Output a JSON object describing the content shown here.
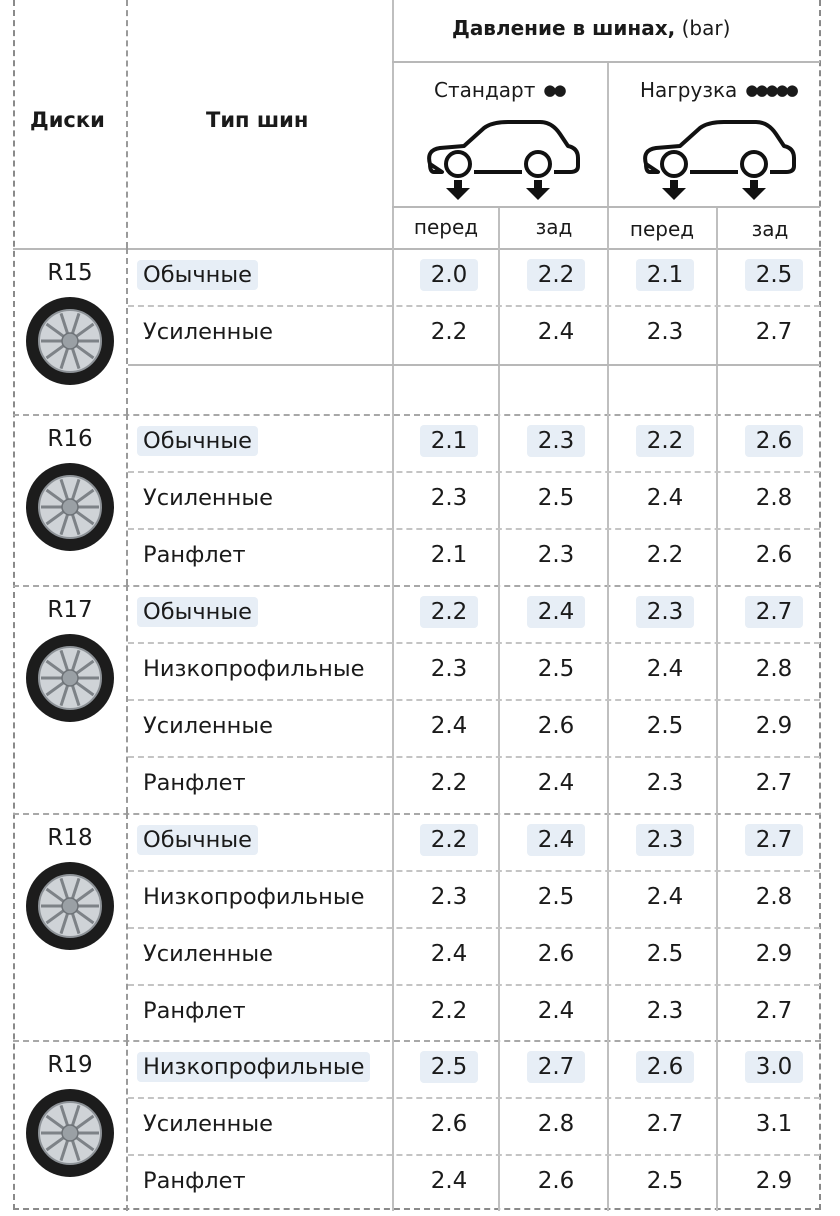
{
  "header": {
    "col_rims": "Диски",
    "col_type": "Тип шин",
    "pressure_title_bold": "Давление в шинах,",
    "pressure_title_unit": "(bar)",
    "mode_standard": "Стандарт",
    "mode_load": "Нагрузка",
    "front": "перед",
    "rear": "зад"
  },
  "groups": [
    {
      "rim": "R15",
      "rows": [
        {
          "type": "Обычные",
          "values": [
            "2.0",
            "2.2",
            "2.1",
            "2.5"
          ],
          "highlighted": true
        },
        {
          "type": "Усиленные",
          "values": [
            "2.2",
            "2.4",
            "2.3",
            "2.7"
          ],
          "highlighted": false
        }
      ]
    },
    {
      "rim": "R16",
      "rows": [
        {
          "type": "Обычные",
          "values": [
            "2.1",
            "2.3",
            "2.2",
            "2.6"
          ],
          "highlighted": true
        },
        {
          "type": "Усиленные",
          "values": [
            "2.3",
            "2.5",
            "2.4",
            "2.8"
          ],
          "highlighted": false
        },
        {
          "type": "Ранфлет",
          "values": [
            "2.1",
            "2.3",
            "2.2",
            "2.6"
          ],
          "highlighted": false
        }
      ]
    },
    {
      "rim": "R17",
      "rows": [
        {
          "type": "Обычные",
          "values": [
            "2.2",
            "2.4",
            "2.3",
            "2.7"
          ],
          "highlighted": true
        },
        {
          "type": "Низкопрофильные",
          "values": [
            "2.3",
            "2.5",
            "2.4",
            "2.8"
          ],
          "highlighted": false
        },
        {
          "type": "Усиленные",
          "values": [
            "2.4",
            "2.6",
            "2.5",
            "2.9"
          ],
          "highlighted": false
        },
        {
          "type": "Ранфлет",
          "values": [
            "2.2",
            "2.4",
            "2.3",
            "2.7"
          ],
          "highlighted": false
        }
      ]
    },
    {
      "rim": "R18",
      "rows": [
        {
          "type": "Обычные",
          "values": [
            "2.2",
            "2.4",
            "2.3",
            "2.7"
          ],
          "highlighted": true
        },
        {
          "type": "Низкопрофильные",
          "values": [
            "2.3",
            "2.5",
            "2.4",
            "2.8"
          ],
          "highlighted": false
        },
        {
          "type": "Усиленные",
          "values": [
            "2.4",
            "2.6",
            "2.5",
            "2.9"
          ],
          "highlighted": false
        },
        {
          "type": "Ранфлет",
          "values": [
            "2.2",
            "2.4",
            "2.3",
            "2.7"
          ],
          "highlighted": false
        }
      ]
    },
    {
      "rim": "R19",
      "rows": [
        {
          "type": "Низкопрофильные",
          "values": [
            "2.5",
            "2.7",
            "2.6",
            "3.0"
          ],
          "highlighted": true
        },
        {
          "type": "Усиленные",
          "values": [
            "2.6",
            "2.8",
            "2.7",
            "3.1"
          ],
          "highlighted": false
        },
        {
          "type": "Ранфлет",
          "values": [
            "2.4",
            "2.6",
            "2.5",
            "2.9"
          ],
          "highlighted": false
        }
      ]
    }
  ],
  "colors": {
    "highlight": "#e7eef6",
    "grid": "#bfbfbf",
    "frame": "#8a8a8a"
  }
}
